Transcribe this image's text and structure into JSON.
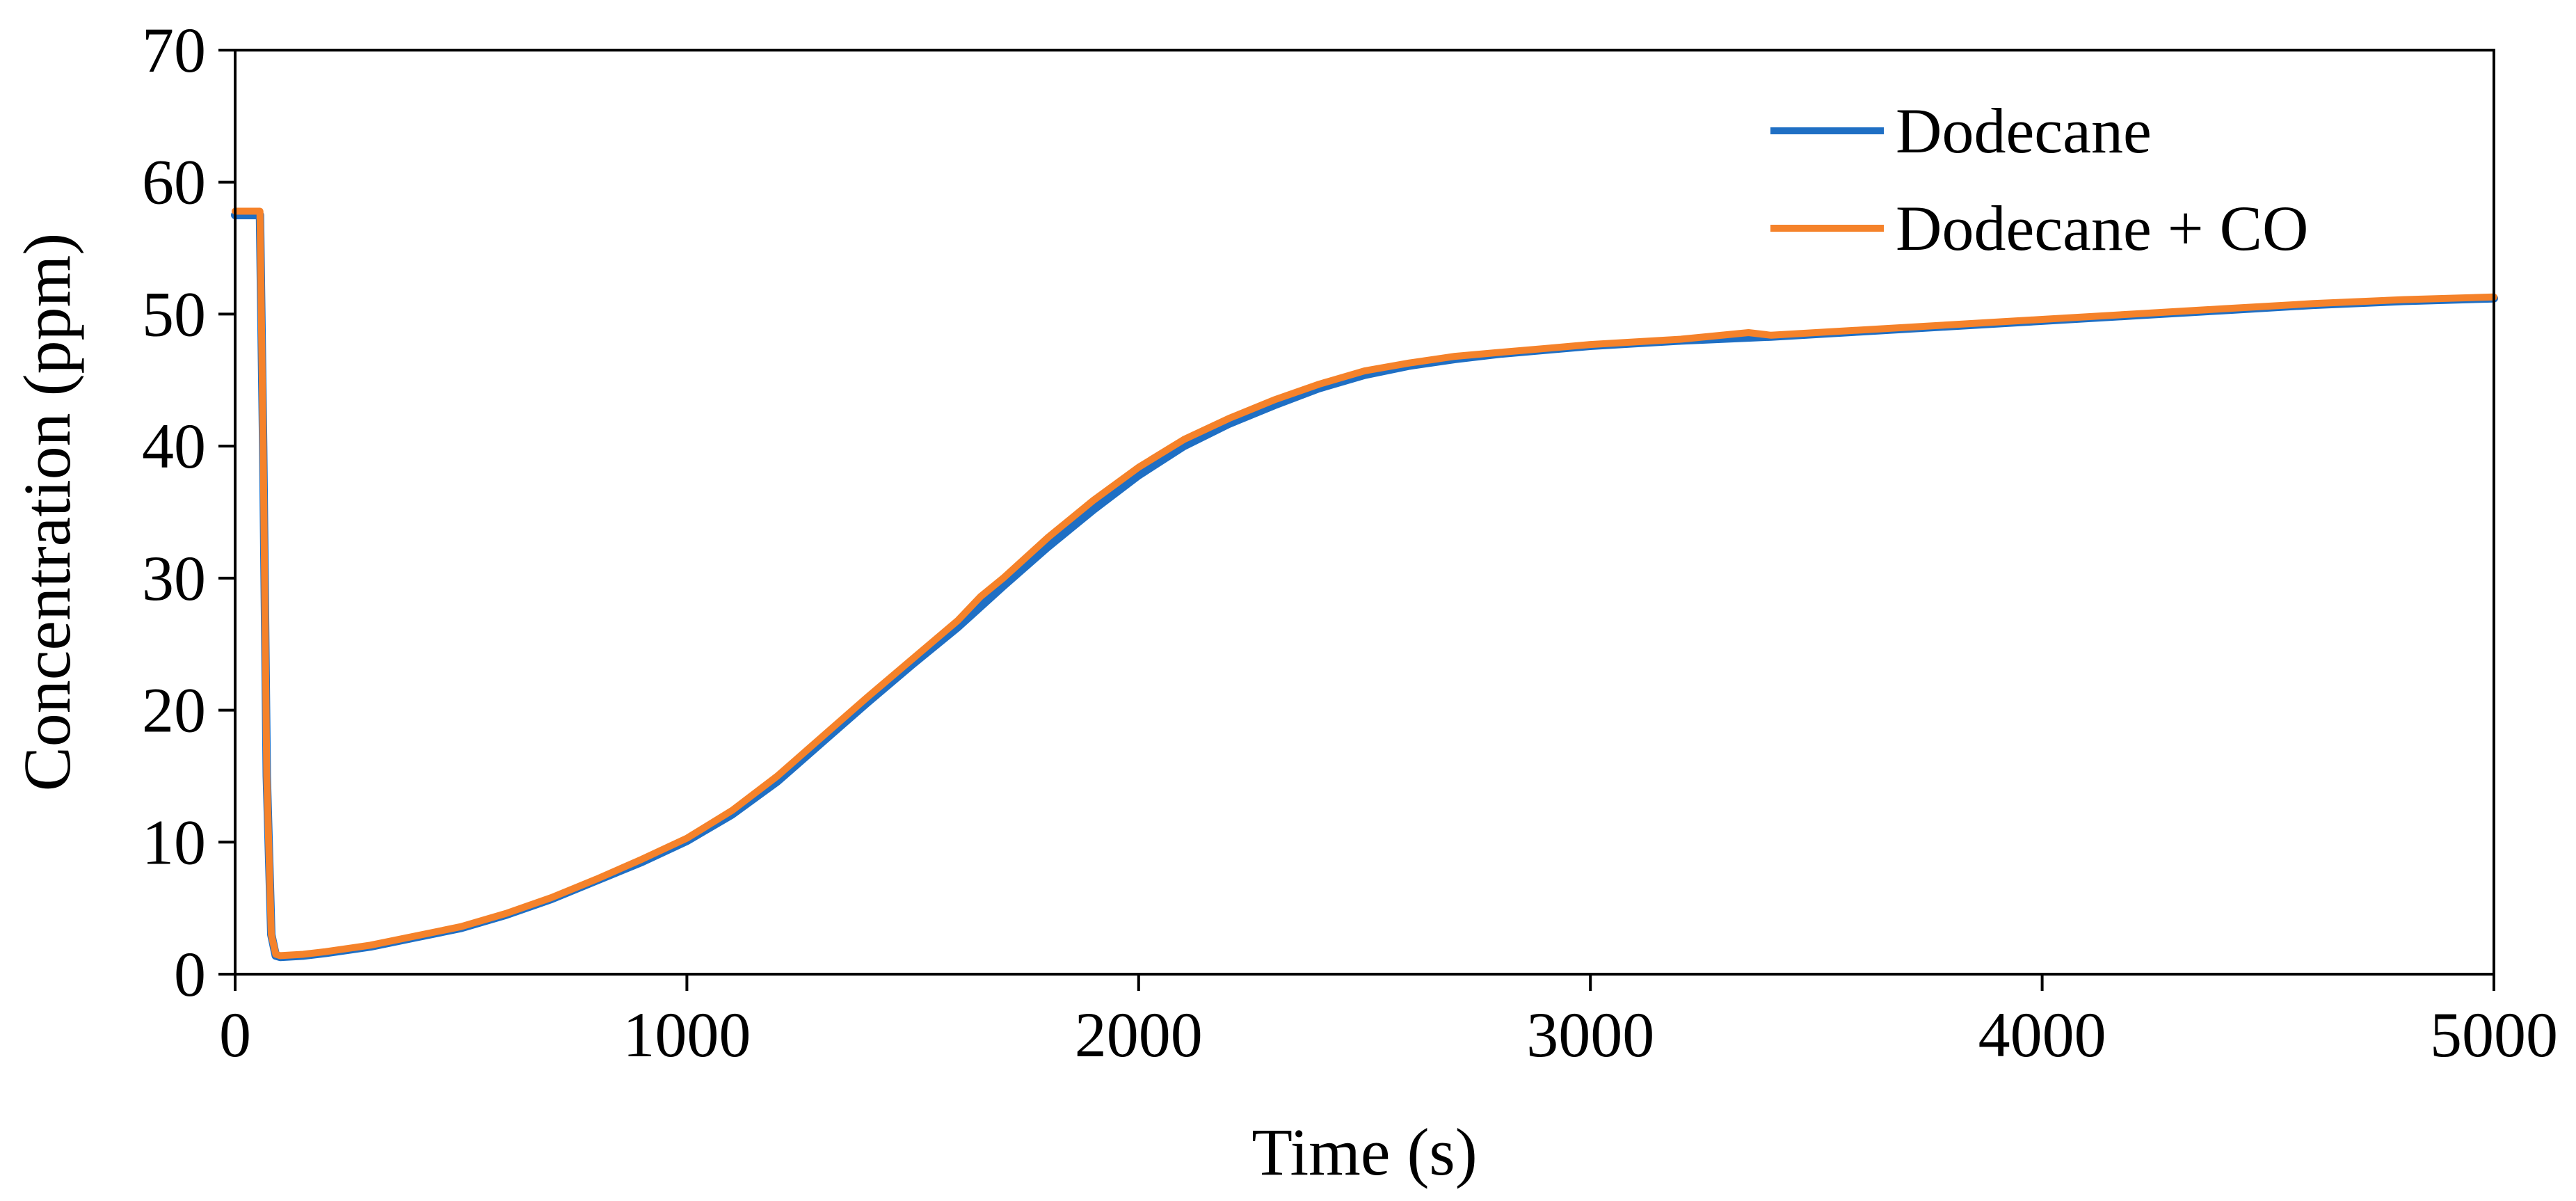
{
  "chart_data": {
    "type": "line",
    "title": "",
    "xlabel": "Time (s)",
    "ylabel": "Concentration (ppm)",
    "xlim": [
      0,
      5000
    ],
    "ylim": [
      0,
      70
    ],
    "x_ticks": [
      "0",
      "1000",
      "2000",
      "3000",
      "4000",
      "5000"
    ],
    "y_ticks": [
      "0",
      "10",
      "20",
      "30",
      "40",
      "50",
      "60",
      "70"
    ],
    "grid": false,
    "legend_position": "top-right",
    "series": [
      {
        "name": "Dodecane",
        "color": "#1f6fc4",
        "x": [
          0,
          40,
          55,
          62,
          70,
          80,
          90,
          100,
          150,
          200,
          300,
          400,
          500,
          600,
          700,
          800,
          900,
          1000,
          1100,
          1200,
          1300,
          1400,
          1500,
          1600,
          1700,
          1800,
          1900,
          2000,
          2100,
          2200,
          2300,
          2400,
          2500,
          2600,
          2700,
          2800,
          2900,
          3000,
          3200,
          3400,
          3600,
          3800,
          4000,
          4200,
          4400,
          4600,
          4800,
          5000
        ],
        "y": [
          57.5,
          57.5,
          57.5,
          40,
          15,
          3,
          1.4,
          1.3,
          1.4,
          1.6,
          2.1,
          2.8,
          3.5,
          4.5,
          5.7,
          7.1,
          8.5,
          10.1,
          12.1,
          14.6,
          17.6,
          20.6,
          23.5,
          26.3,
          29.4,
          32.4,
          35.2,
          37.8,
          40.0,
          41.7,
          43.1,
          44.4,
          45.4,
          46.1,
          46.6,
          47.0,
          47.3,
          47.6,
          48.0,
          48.3,
          48.7,
          49.1,
          49.5,
          49.9,
          50.3,
          50.7,
          51.0,
          51.2
        ]
      },
      {
        "name": "Dodecane + CO",
        "color": "#f5822a",
        "x": [
          0,
          40,
          55,
          62,
          70,
          80,
          90,
          100,
          150,
          200,
          300,
          400,
          500,
          600,
          700,
          800,
          900,
          1000,
          1100,
          1200,
          1300,
          1400,
          1500,
          1600,
          1650,
          1700,
          1800,
          1900,
          2000,
          2100,
          2200,
          2300,
          2400,
          2500,
          2600,
          2700,
          2800,
          2900,
          3000,
          3200,
          3350,
          3400,
          3600,
          3800,
          4000,
          4200,
          4400,
          4600,
          4800,
          5000
        ],
        "y": [
          57.8,
          57.8,
          57.8,
          40,
          15,
          3,
          1.5,
          1.4,
          1.5,
          1.7,
          2.2,
          2.9,
          3.6,
          4.6,
          5.8,
          7.2,
          8.7,
          10.3,
          12.4,
          15.0,
          18.0,
          21.0,
          23.9,
          26.8,
          28.6,
          30.0,
          33.1,
          35.9,
          38.4,
          40.5,
          42.1,
          43.5,
          44.7,
          45.7,
          46.3,
          46.8,
          47.1,
          47.4,
          47.7,
          48.1,
          48.6,
          48.4,
          48.8,
          49.2,
          49.6,
          50.0,
          50.4,
          50.8,
          51.1,
          51.3
        ]
      }
    ]
  }
}
